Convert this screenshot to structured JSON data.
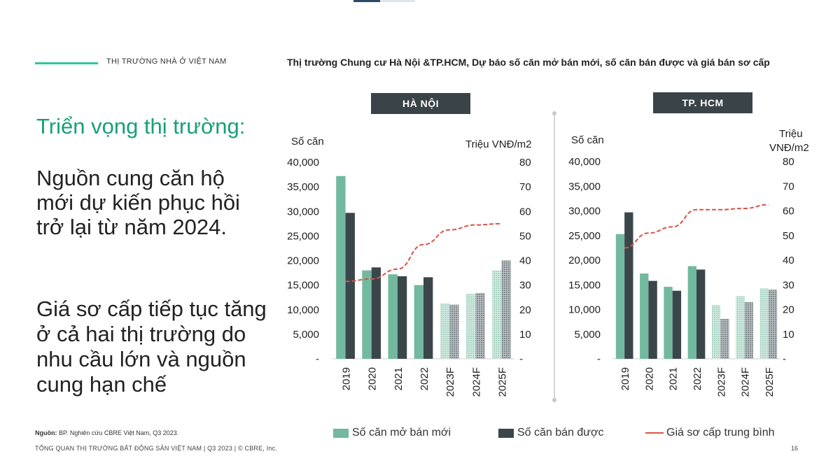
{
  "section_label": "THỊ TRƯỜNG NHÀ Ở VIỆT NAM",
  "heading": {
    "accent": "Triển vọng thị trường:",
    "main": "Nguồn cung căn hộ mới dự kiến phục hồi trở lại từ năm 2024.",
    "sub": "Giá sơ cấp tiếp tục tăng ở cả hai thị trường do nhu cầu lớn và nguồn cung hạn chế"
  },
  "source": {
    "label": "Nguồn:",
    "text": " BP. Nghiên cứu CBRE Việt Nam, Q3 2023."
  },
  "footer": "TỔNG QUAN THỊ TRƯỜNG BẤT ĐỘNG SẢN VIỆT NAM | Q3 2023 | © CBRE, Inc.",
  "page_number": "16",
  "chart_title": "Thị trường Chung cư Hà Nội &TP.HCM, Dự báo số căn mở bán mới, số căn bán được và giá bán sơ cấp",
  "legend": {
    "new_supply": "Số căn mở bán mới",
    "sold": "Số căn bán được",
    "price": "Giá sơ cấp trung bình"
  },
  "colors": {
    "accent_green": "#17a07a",
    "new_supply": "#72b9a0",
    "sold": "#3b464b",
    "price_line": "#d9534a",
    "tag_bg": "#3a4347"
  },
  "chart_data": [
    {
      "type": "bar",
      "tag": "HÀ NỘI",
      "categories": [
        "2019",
        "2020",
        "2021",
        "2022",
        "2023F",
        "2024F",
        "2025F"
      ],
      "forecast_from_index": 4,
      "ylabel": "Số căn",
      "y2label": "Triệu VNĐ/m2",
      "ylim": [
        0,
        40000
      ],
      "y2lim": [
        0,
        80
      ],
      "y_ticks": [
        "-",
        "5,000",
        "10,000",
        "15,000",
        "20,000",
        "25,000",
        "30,000",
        "35,000",
        "40,000"
      ],
      "y2_ticks": [
        "-",
        "10",
        "20",
        "30",
        "40",
        "50",
        "60",
        "70",
        "80"
      ],
      "series": [
        {
          "name": "Số căn mở bán mới",
          "kind": "bar",
          "values": [
            37200,
            18000,
            17200,
            15000,
            11300,
            13200,
            18000
          ]
        },
        {
          "name": "Số căn bán được",
          "kind": "bar",
          "values": [
            29700,
            18600,
            16800,
            16600,
            11000,
            13400,
            20000
          ]
        },
        {
          "name": "Giá sơ cấp trung bình",
          "kind": "line",
          "axis": "y2",
          "values": [
            31.5,
            32.5,
            36.5,
            46.5,
            52.5,
            54.5,
            55
          ]
        }
      ]
    },
    {
      "type": "bar",
      "tag": "TP. HCM",
      "categories": [
        "2019",
        "2020",
        "2021",
        "2022",
        "2023F",
        "2024F",
        "2025F"
      ],
      "forecast_from_index": 4,
      "ylabel": "Số căn",
      "y2label": "Triệu VNĐ/m2",
      "ylim": [
        0,
        40000
      ],
      "y2lim": [
        0,
        80
      ],
      "y_ticks": [
        "-",
        "5,000",
        "10,000",
        "15,000",
        "20,000",
        "25,000",
        "30,000",
        "35,000",
        "40,000"
      ],
      "y2_ticks": [
        "-",
        "10",
        "20",
        "30",
        "40",
        "50",
        "60",
        "70",
        "80"
      ],
      "series": [
        {
          "name": "Số căn mở bán mới",
          "kind": "bar",
          "values": [
            25300,
            17300,
            14600,
            18800,
            10900,
            12700,
            14300
          ]
        },
        {
          "name": "Số căn bán được",
          "kind": "bar",
          "values": [
            29700,
            15800,
            13800,
            18100,
            8100,
            11500,
            14000
          ]
        },
        {
          "name": "Giá sơ cấp trung bình",
          "kind": "line",
          "axis": "y2",
          "values": [
            45,
            51,
            53.5,
            60.5,
            60.5,
            61,
            62.5
          ]
        }
      ]
    }
  ]
}
